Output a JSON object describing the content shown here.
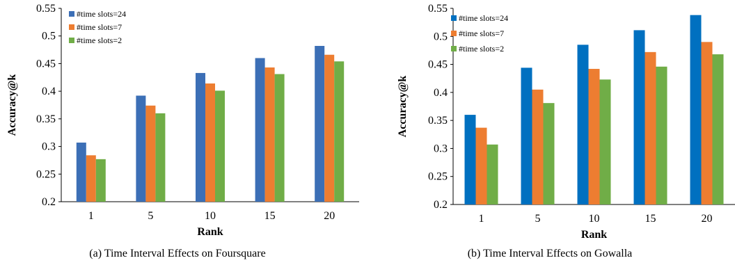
{
  "chart_data": [
    {
      "type": "bar",
      "caption": "(a) Time Interval Effects on Foursquare",
      "xlabel": "Rank",
      "ylabel": "Accuracy@k",
      "ylim": [
        0.2,
        0.55
      ],
      "yticks": [
        "0.2",
        "0.25",
        "0.3",
        "0.35",
        "0.4",
        "0.45",
        "0.5",
        "0.55"
      ],
      "categories": [
        "1",
        "5",
        "10",
        "15",
        "20"
      ],
      "legend_position": "top-left",
      "grid": false,
      "series": [
        {
          "name": "#time slots=24",
          "color": "#3c6fb6",
          "values": [
            0.307,
            0.392,
            0.433,
            0.46,
            0.482
          ]
        },
        {
          "name": "#time slots=7",
          "color": "#ed7d31",
          "values": [
            0.284,
            0.374,
            0.414,
            0.443,
            0.466
          ]
        },
        {
          "name": "#time slots=2",
          "color": "#70ad47",
          "values": [
            0.277,
            0.36,
            0.401,
            0.431,
            0.454
          ]
        }
      ]
    },
    {
      "type": "bar",
      "caption": "(b) Time Interval Effects on Gowalla",
      "xlabel": "Rank",
      "ylabel": "Accuracy@k",
      "ylim": [
        0.2,
        0.55
      ],
      "yticks": [
        "0.2",
        "0.25",
        "0.3",
        "0.35",
        "0.4",
        "0.45",
        "0.5",
        "0.55"
      ],
      "categories": [
        "1",
        "5",
        "10",
        "15",
        "20"
      ],
      "legend_position": "top-left",
      "grid": false,
      "series": [
        {
          "name": "#time slots=24",
          "color": "#0070c0",
          "values": [
            0.36,
            0.444,
            0.485,
            0.511,
            0.538
          ]
        },
        {
          "name": "#time slots=7",
          "color": "#ed7d31",
          "values": [
            0.337,
            0.405,
            0.442,
            0.472,
            0.49
          ]
        },
        {
          "name": "#time slots=2",
          "color": "#70ad47",
          "values": [
            0.307,
            0.381,
            0.423,
            0.446,
            0.468
          ]
        }
      ]
    }
  ]
}
